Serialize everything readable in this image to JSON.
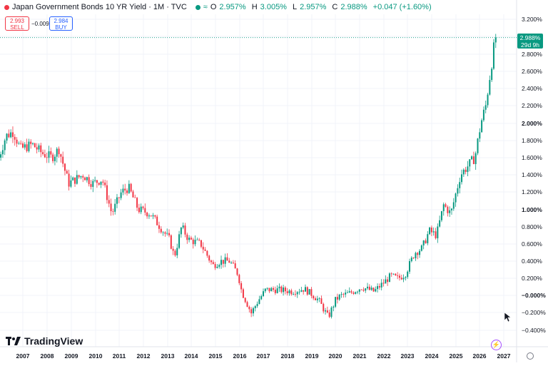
{
  "header": {
    "title": "Japan Government Bonds 10 YR Yield · 1M · TVC",
    "o_label": "O",
    "o_value": "2.957%",
    "h_label": "H",
    "h_value": "3.005%",
    "l_label": "L",
    "l_value": "2.957%",
    "c_label": "C",
    "c_value": "2.988%",
    "change": "+0.047 (+1.60%)"
  },
  "trade": {
    "sell_price": "2.993",
    "sell_label": "SELL",
    "spread": "−0.009",
    "buy_price": "2.984",
    "buy_label": "BUY"
  },
  "last_price": {
    "value": "2.988%",
    "countdown": "29d 9h"
  },
  "brand": {
    "name": "TradingView"
  },
  "colors": {
    "up": "#089981",
    "down": "#f23645",
    "grid": "#f0f3fa",
    "text": "#131722"
  },
  "icons": [
    "tradingview-logo-icon",
    "bolt-icon",
    "settings-icon",
    "cursor-icon"
  ],
  "chart_data": {
    "type": "candlestick",
    "x_tick_labels": [
      "2007",
      "2008",
      "2009",
      "2010",
      "2011",
      "2012",
      "2013",
      "2014",
      "2015",
      "2016",
      "2017",
      "2018",
      "2019",
      "2020",
      "2021",
      "2022",
      "2023",
      "2024",
      "2025",
      "2026",
      "2027"
    ],
    "y_tick_labels": [
      "3.200%",
      "3.000%",
      "2.800%",
      "2.600%",
      "2.400%",
      "2.200%",
      "2.000%",
      "1.800%",
      "1.600%",
      "1.400%",
      "1.200%",
      "1.000%",
      "0.800%",
      "0.600%",
      "0.400%",
      "0.200%",
      "−0.000%",
      "−0.200%",
      "−0.400%"
    ],
    "ylim": [
      -0.45,
      3.25
    ],
    "xlim": [
      2006.0,
      2027.0
    ],
    "last_close": 2.988,
    "anchors": [
      [
        2006.0,
        1.6
      ],
      [
        2006.3,
        1.85
      ],
      [
        2006.6,
        1.9
      ],
      [
        2006.9,
        1.7
      ],
      [
        2007.4,
        1.75
      ],
      [
        2007.8,
        1.65
      ],
      [
        2008.2,
        1.6
      ],
      [
        2008.5,
        1.7
      ],
      [
        2008.9,
        1.3
      ],
      [
        2009.5,
        1.4
      ],
      [
        2009.9,
        1.3
      ],
      [
        2010.3,
        1.35
      ],
      [
        2010.7,
        0.95
      ],
      [
        2011.1,
        1.2
      ],
      [
        2011.4,
        1.25
      ],
      [
        2011.8,
        1.0
      ],
      [
        2012.3,
        0.95
      ],
      [
        2012.7,
        0.8
      ],
      [
        2013.1,
        0.65
      ],
      [
        2013.3,
        0.45
      ],
      [
        2013.6,
        0.8
      ],
      [
        2013.9,
        0.65
      ],
      [
        2014.4,
        0.6
      ],
      [
        2014.9,
        0.35
      ],
      [
        2015.2,
        0.4
      ],
      [
        2015.6,
        0.4
      ],
      [
        2015.95,
        0.25
      ],
      [
        2016.1,
        0.05
      ],
      [
        2016.5,
        -0.2
      ],
      [
        2016.8,
        -0.05
      ],
      [
        2017.1,
        0.07
      ],
      [
        2017.6,
        0.07
      ],
      [
        2018.2,
        0.05
      ],
      [
        2018.7,
        0.08
      ],
      [
        2019.0,
        0.02
      ],
      [
        2019.3,
        -0.05
      ],
      [
        2019.7,
        -0.25
      ],
      [
        2020.0,
        -0.05
      ],
      [
        2020.2,
        0.0
      ],
      [
        2020.6,
        0.03
      ],
      [
        2021.1,
        0.1
      ],
      [
        2021.6,
        0.05
      ],
      [
        2022.0,
        0.15
      ],
      [
        2022.3,
        0.23
      ],
      [
        2022.6,
        0.2
      ],
      [
        2022.9,
        0.25
      ],
      [
        2023.3,
        0.5
      ],
      [
        2023.6,
        0.55
      ],
      [
        2023.9,
        0.75
      ],
      [
        2024.2,
        0.7
      ],
      [
        2024.5,
        1.05
      ],
      [
        2024.8,
        0.95
      ],
      [
        2025.2,
        1.4
      ],
      [
        2025.5,
        1.5
      ],
      [
        2025.8,
        1.6
      ],
      [
        2026.05,
        2.0
      ],
      [
        2026.25,
        2.2
      ],
      [
        2026.5,
        2.7
      ],
      [
        2026.65,
        2.988
      ]
    ]
  }
}
